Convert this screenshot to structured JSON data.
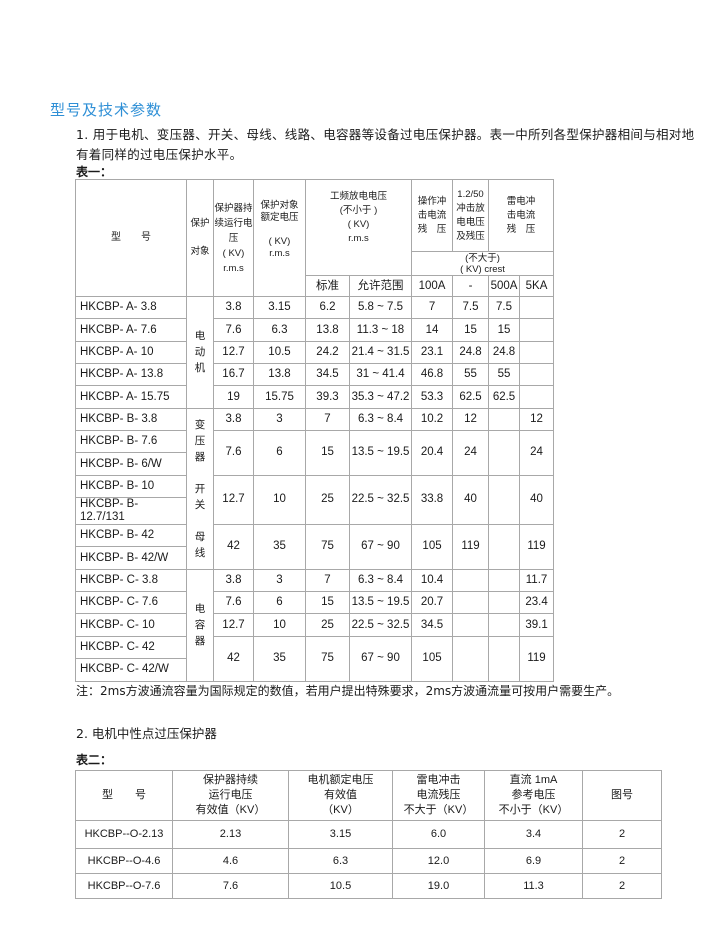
{
  "title": "型号及技术参数",
  "intro": "1. 用于电机、变压器、开关、母线、线路、电容器等设备过电压保护器。表一中所列各型保护器相间与相对地有着同样的过电压保护水平。",
  "table1": {
    "label": "表一：",
    "headers": {
      "model": "型　　号",
      "object": "保护\n\n对象",
      "v_cont": "保护器持\n续运行电\n压\n( KV)\nr.m.s",
      "v_rated": "保护对象\n额定电压\n\n( KV)\nr.m.s",
      "power_freq": "工频放电电压\n(不小于 )\n( KV)\nr.m.s",
      "op_residual": "操作冲\n击电流\n残　压",
      "impulse": "1.2/50\n冲击放\n电电压\n及残压",
      "lightning": "雷电冲\n击电流\n残　压",
      "limit": "(不大于)\n( KV) crest",
      "sub": [
        "标准",
        "允许范围",
        "100A",
        "-",
        "500A",
        "5KA"
      ]
    },
    "groups": [
      {
        "object": "电\n动\n机",
        "blocks": [
          {
            "models": [
              "HKCBP- A- 3.8"
            ],
            "values": [
              "3.8",
              "3.15",
              "6.2",
              "5.8 ~ 7.5",
              "7",
              "7.5",
              "7.5",
              ""
            ]
          },
          {
            "models": [
              "HKCBP- A- 7.6"
            ],
            "values": [
              "7.6",
              "6.3",
              "13.8",
              "11.3 ~ 18",
              "14",
              "15",
              "15",
              ""
            ]
          },
          {
            "models": [
              "HKCBP- A- 10"
            ],
            "values": [
              "12.7",
              "10.5",
              "24.2",
              "21.4 ~ 31.5",
              "23.1",
              "24.8",
              "24.8",
              ""
            ]
          },
          {
            "models": [
              "HKCBP- A- 13.8"
            ],
            "values": [
              "16.7",
              "13.8",
              "34.5",
              "31 ~ 41.4",
              "46.8",
              "55",
              "55",
              ""
            ]
          },
          {
            "models": [
              "HKCBP- A- 15.75"
            ],
            "values": [
              "19",
              "15.75",
              "39.3",
              "35.3 ~ 47.2",
              "53.3",
              "62.5",
              "62.5",
              ""
            ]
          }
        ]
      },
      {
        "object": "变\n压\n器\n\n开\n关\n\n母\n线",
        "blocks": [
          {
            "models": [
              "HKCBP- B- 3.8"
            ],
            "values": [
              "3.8",
              "3",
              "7",
              "6.3 ~ 8.4",
              "10.2",
              "12",
              "",
              "12"
            ]
          },
          {
            "models": [
              "HKCBP- B- 7.6",
              "HKCBP- B- 6/W"
            ],
            "values": [
              "7.6",
              "6",
              "15",
              "13.5 ~ 19.5",
              "20.4",
              "24",
              "",
              "24"
            ]
          },
          {
            "models": [
              "HKCBP- B- 10",
              "HKCBP- B- 12.7/131"
            ],
            "values": [
              "12.7",
              "10",
              "25",
              "22.5 ~ 32.5",
              "33.8",
              "40",
              "",
              "40"
            ]
          },
          {
            "models": [
              "HKCBP- B- 42",
              "HKCBP- B- 42/W"
            ],
            "values": [
              "42",
              "35",
              "75",
              "67 ~ 90",
              "105",
              "119",
              "",
              "119"
            ]
          }
        ]
      },
      {
        "object": "电\n容\n器",
        "blocks": [
          {
            "models": [
              "HKCBP- C- 3.8"
            ],
            "values": [
              "3.8",
              "3",
              "7",
              "6.3 ~ 8.4",
              "10.4",
              "",
              "",
              "11.7"
            ]
          },
          {
            "models": [
              "HKCBP- C- 7.6"
            ],
            "values": [
              "7.6",
              "6",
              "15",
              "13.5 ~ 19.5",
              "20.7",
              "",
              "",
              "23.4"
            ]
          },
          {
            "models": [
              "HKCBP- C- 10"
            ],
            "values": [
              "12.7",
              "10",
              "25",
              "22.5 ~ 32.5",
              "34.5",
              "",
              "",
              "39.1"
            ]
          },
          {
            "models": [
              "HKCBP- C- 42",
              "HKCBP- C- 42/W"
            ],
            "values": [
              "42",
              "35",
              "75",
              "67 ~ 90",
              "105",
              "",
              "",
              "119"
            ]
          }
        ]
      }
    ],
    "note": "注：2ms方波通流容量为国际规定的数值，若用户提出特殊要求，2ms方波通流量可按用户需要生产。"
  },
  "section2": "2. 电机中性点过压保护器",
  "table2": {
    "label": "表二：",
    "headers": [
      "型　　号",
      "保护器持续\n运行电压\n有效值（KV）",
      "电机额定电压\n有效值\n（KV）",
      "雷电冲击\n电流残压\n不大于（KV）",
      "直流 1mA\n参考电压\n不小于（KV）",
      "图号"
    ],
    "rows": [
      [
        "HKCBP--O-2.13",
        "2.13",
        "3.15",
        "6.0",
        "3.4",
        "2"
      ],
      [
        "HKCBP--O-4.6",
        "4.6",
        "6.3",
        "12.0",
        "6.9",
        "2"
      ],
      [
        "HKCBP--O-7.6",
        "7.6",
        "10.5",
        "19.0",
        "11.3",
        "2"
      ]
    ]
  }
}
